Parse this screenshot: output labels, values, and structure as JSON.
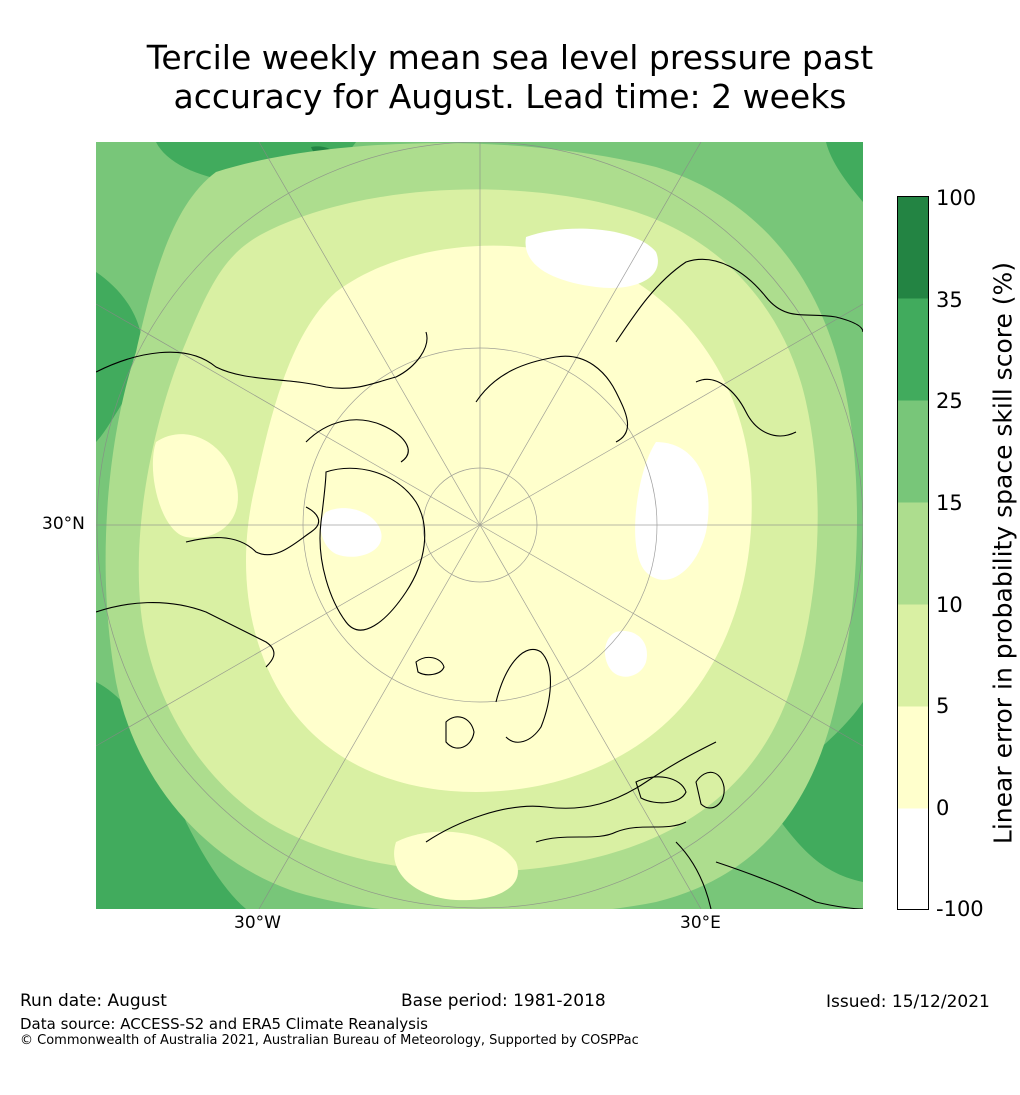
{
  "title": {
    "line1": "Tercile weekly mean sea level pressure past",
    "line2": "accuracy for August. Lead time: 2 weeks"
  },
  "map": {
    "projection": "north-polar-stereographic",
    "longitude_labels": [
      "30°W",
      "30°E"
    ],
    "latitude_labels": [
      "30°N"
    ],
    "fill_colors": {
      "minus100_0": "#ffffff",
      "0_5": "#ffffcc",
      "5_10": "#d9f0a3",
      "10_15": "#addd8e",
      "15_25": "#78c679",
      "25_35": "#41ab5d",
      "35_100": "#238443"
    },
    "coastline_color": "#000000",
    "gridline_color": "#888888"
  },
  "colorbar": {
    "label": "Linear error in probability space skill score (%)",
    "ticks": [
      "100",
      "35",
      "25",
      "15",
      "10",
      "5",
      "0",
      "-100"
    ],
    "colors": [
      "#238443",
      "#41ab5d",
      "#78c679",
      "#addd8e",
      "#d9f0a3",
      "#ffffcc",
      "#ffffff"
    ]
  },
  "footer": {
    "run_date": "Run date: August",
    "base_period": "Base period: 1981-2018",
    "issued": "Issued: 15/12/2021",
    "data_source": "Data source: ACCESS-S2 and ERA5 Climate Reanalysis",
    "copyright": "© Commonwealth of Australia 2021, Australian Bureau of Meteorology, Supported by COSPPac"
  }
}
